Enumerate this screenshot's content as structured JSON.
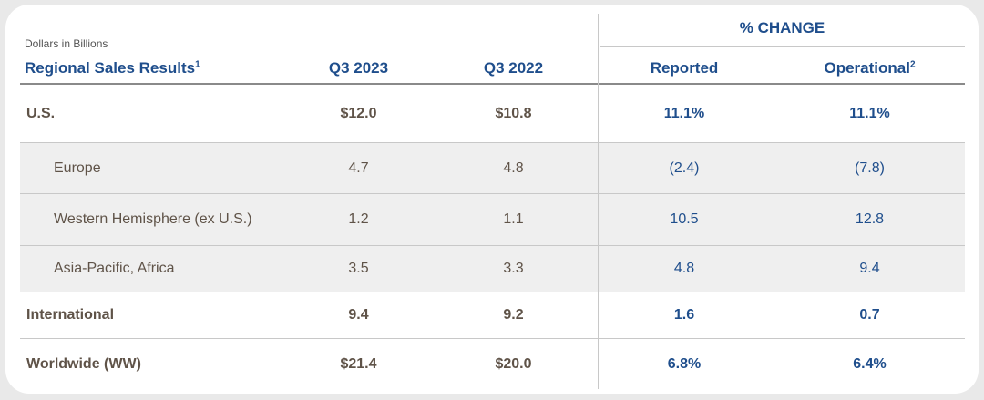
{
  "units_note": "Dollars in Billions",
  "table_title": "Regional Sales Results",
  "table_title_footnote": "1",
  "pct_change_header": "% CHANGE",
  "columns": {
    "q3_2023": "Q3 2023",
    "q3_2022": "Q3 2022",
    "reported": "Reported",
    "operational": "Operational",
    "operational_footnote": "2"
  },
  "rows": [
    {
      "label": "U.S.",
      "q3_2023": "$12.0",
      "q3_2022": "$10.8",
      "reported": "11.1%",
      "operational": "11.1%"
    },
    {
      "label": "Europe",
      "q3_2023": "4.7",
      "q3_2022": "4.8",
      "reported": "(2.4)",
      "operational": "(7.8)"
    },
    {
      "label": "Western Hemisphere (ex U.S.)",
      "q3_2023": "1.2",
      "q3_2022": "1.1",
      "reported": "10.5",
      "operational": "12.8"
    },
    {
      "label": "Asia-Pacific, Africa",
      "q3_2023": "3.5",
      "q3_2022": "3.3",
      "reported": "4.8",
      "operational": "9.4"
    },
    {
      "label": "International",
      "q3_2023": "9.4",
      "q3_2022": "9.2",
      "reported": "1.6",
      "operational": "0.7"
    },
    {
      "label": "Worldwide (WW)",
      "q3_2023": "$21.4",
      "q3_2022": "$20.0",
      "reported": "6.8%",
      "operational": "6.4%"
    }
  ],
  "colors": {
    "blue": "#1f4e8c",
    "brown_text": "#5f5348",
    "shade": "#efefef"
  }
}
